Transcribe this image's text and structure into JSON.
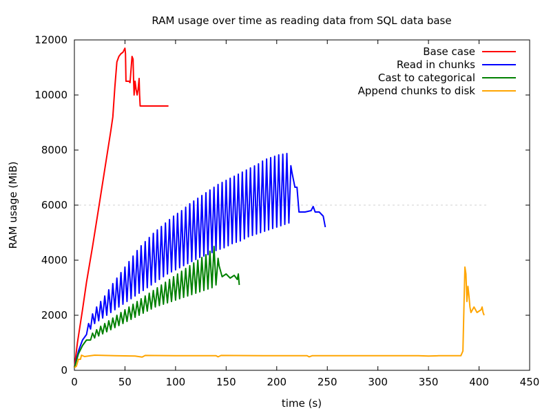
{
  "chart_data": {
    "type": "line",
    "title": "RAM usage over time as reading data from SQL data base",
    "xlabel": "time (s)",
    "ylabel": "RAM usage (MiB)",
    "xlim": [
      0,
      450
    ],
    "ylim": [
      0,
      12000
    ],
    "xticks": [
      0,
      50,
      100,
      150,
      200,
      250,
      300,
      350,
      400,
      450
    ],
    "yticks": [
      0,
      2000,
      4000,
      6000,
      8000,
      10000,
      12000
    ],
    "grid": "dashed horizontal line at 6000",
    "legend_position": "top-right",
    "series": [
      {
        "name": "Base case",
        "color": "#ff0000",
        "points": [
          [
            0,
            100
          ],
          [
            3,
            1000
          ],
          [
            8,
            2200
          ],
          [
            12,
            3200
          ],
          [
            18,
            4500
          ],
          [
            24,
            5900
          ],
          [
            30,
            7300
          ],
          [
            36,
            8700
          ],
          [
            38,
            9200
          ],
          [
            40,
            10300
          ],
          [
            42,
            11200
          ],
          [
            44,
            11400
          ],
          [
            46,
            11500
          ],
          [
            48,
            11550
          ],
          [
            50,
            11700
          ],
          [
            50.5,
            11500
          ],
          [
            51,
            10500
          ],
          [
            54,
            10500
          ],
          [
            55,
            10450
          ],
          [
            57,
            11400
          ],
          [
            58,
            11300
          ],
          [
            58.5,
            10600
          ],
          [
            59,
            10000
          ],
          [
            60,
            10500
          ],
          [
            61,
            10200
          ],
          [
            62,
            10000
          ],
          [
            63,
            10200
          ],
          [
            64,
            10600
          ],
          [
            64.5,
            10000
          ],
          [
            65,
            9600
          ],
          [
            80,
            9600
          ],
          [
            93,
            9600
          ]
        ]
      },
      {
        "name": "Read in chunks",
        "color": "#0000ff",
        "points": [
          [
            0,
            100
          ],
          [
            4,
            700
          ],
          [
            8,
            1100
          ],
          [
            12,
            1500
          ],
          [
            16,
            1900
          ],
          [
            20,
            2200
          ],
          [
            24,
            2400
          ],
          [
            28,
            2600
          ],
          [
            32,
            2800
          ],
          [
            36,
            3050
          ],
          [
            40,
            3250
          ],
          [
            44,
            3450
          ],
          [
            48,
            3650
          ],
          [
            52,
            3850
          ],
          [
            56,
            4050
          ],
          [
            60,
            4250
          ],
          [
            64,
            4450
          ],
          [
            68,
            4600
          ],
          [
            72,
            4750
          ],
          [
            76,
            4900
          ],
          [
            80,
            5050
          ],
          [
            84,
            5150
          ],
          [
            88,
            5300
          ],
          [
            92,
            5400
          ],
          [
            96,
            5550
          ],
          [
            100,
            5650
          ],
          [
            104,
            5750
          ],
          [
            108,
            5850
          ],
          [
            112,
            6000
          ],
          [
            116,
            6100
          ],
          [
            120,
            6200
          ],
          [
            124,
            6300
          ],
          [
            128,
            6400
          ],
          [
            132,
            6500
          ],
          [
            136,
            6600
          ],
          [
            140,
            6700
          ],
          [
            144,
            6800
          ],
          [
            148,
            6850
          ],
          [
            152,
            6950
          ],
          [
            156,
            7000
          ],
          [
            160,
            7100
          ],
          [
            164,
            7150
          ],
          [
            168,
            7250
          ],
          [
            172,
            7300
          ],
          [
            176,
            7400
          ],
          [
            180,
            7450
          ],
          [
            184,
            7550
          ],
          [
            188,
            7650
          ],
          [
            192,
            7700
          ],
          [
            196,
            7750
          ],
          [
            200,
            7800
          ],
          [
            204,
            7850
          ],
          [
            208,
            7850
          ],
          [
            212,
            7900
          ],
          [
            215,
            7200
          ],
          [
            218,
            6650
          ],
          [
            220,
            6650
          ],
          [
            222,
            5750
          ],
          [
            228,
            5750
          ],
          [
            234,
            5800
          ],
          [
            236,
            5950
          ],
          [
            238,
            5750
          ],
          [
            242,
            5750
          ],
          [
            246,
            5600
          ],
          [
            248,
            5200
          ]
        ],
        "oscillation_lows": [
          [
            12,
            1300
          ],
          [
            20,
            1700
          ],
          [
            28,
            1900
          ],
          [
            36,
            2100
          ],
          [
            44,
            2300
          ],
          [
            52,
            2500
          ],
          [
            60,
            2700
          ],
          [
            68,
            2900
          ],
          [
            76,
            3100
          ],
          [
            84,
            3300
          ],
          [
            92,
            3500
          ],
          [
            100,
            3650
          ],
          [
            108,
            3800
          ],
          [
            116,
            3950
          ],
          [
            124,
            4100
          ],
          [
            132,
            4200
          ],
          [
            140,
            4350
          ],
          [
            148,
            4450
          ],
          [
            156,
            4600
          ],
          [
            164,
            4700
          ],
          [
            172,
            4850
          ],
          [
            180,
            4950
          ],
          [
            188,
            5050
          ],
          [
            196,
            5150
          ],
          [
            204,
            5250
          ],
          [
            212,
            5350
          ]
        ]
      },
      {
        "name": "Cast to categorical",
        "color": "#008000",
        "points": [
          [
            0,
            100
          ],
          [
            4,
            600
          ],
          [
            8,
            900
          ],
          [
            12,
            1100
          ],
          [
            16,
            1300
          ],
          [
            20,
            1400
          ],
          [
            24,
            1550
          ],
          [
            28,
            1650
          ],
          [
            32,
            1750
          ],
          [
            36,
            1850
          ],
          [
            40,
            1950
          ],
          [
            44,
            2050
          ],
          [
            48,
            2150
          ],
          [
            52,
            2250
          ],
          [
            56,
            2350
          ],
          [
            60,
            2450
          ],
          [
            64,
            2550
          ],
          [
            68,
            2650
          ],
          [
            72,
            2750
          ],
          [
            76,
            2850
          ],
          [
            80,
            2950
          ],
          [
            84,
            3050
          ],
          [
            88,
            3150
          ],
          [
            92,
            3250
          ],
          [
            96,
            3350
          ],
          [
            100,
            3450
          ],
          [
            104,
            3550
          ],
          [
            108,
            3650
          ],
          [
            112,
            3750
          ],
          [
            116,
            3850
          ],
          [
            120,
            3950
          ],
          [
            124,
            4050
          ],
          [
            128,
            4150
          ],
          [
            132,
            4250
          ],
          [
            136,
            4400
          ],
          [
            140,
            4600
          ],
          [
            143,
            3800
          ],
          [
            146,
            3400
          ],
          [
            150,
            3500
          ],
          [
            154,
            3350
          ],
          [
            158,
            3450
          ],
          [
            161,
            3300
          ],
          [
            162,
            3500
          ],
          [
            163,
            3100
          ]
        ],
        "oscillation_lows": [
          [
            16,
            1100
          ],
          [
            24,
            1250
          ],
          [
            32,
            1400
          ],
          [
            40,
            1550
          ],
          [
            48,
            1700
          ],
          [
            56,
            1850
          ],
          [
            64,
            2000
          ],
          [
            72,
            2150
          ],
          [
            80,
            2300
          ],
          [
            88,
            2400
          ],
          [
            96,
            2500
          ],
          [
            104,
            2600
          ],
          [
            112,
            2700
          ],
          [
            120,
            2800
          ],
          [
            128,
            2900
          ],
          [
            136,
            3000
          ],
          [
            140,
            3100
          ]
        ]
      },
      {
        "name": "Append chunks to disk",
        "color": "#ffa500",
        "points": [
          [
            0,
            100
          ],
          [
            2,
            150
          ],
          [
            4,
            400
          ],
          [
            6,
            400
          ],
          [
            7,
            550
          ],
          [
            10,
            500
          ],
          [
            20,
            550
          ],
          [
            40,
            530
          ],
          [
            60,
            520
          ],
          [
            67,
            480
          ],
          [
            70,
            540
          ],
          [
            100,
            530
          ],
          [
            140,
            530
          ],
          [
            142,
            490
          ],
          [
            145,
            540
          ],
          [
            200,
            530
          ],
          [
            230,
            530
          ],
          [
            232,
            490
          ],
          [
            235,
            530
          ],
          [
            300,
            530
          ],
          [
            340,
            530
          ],
          [
            350,
            520
          ],
          [
            360,
            530
          ],
          [
            382,
            530
          ],
          [
            384,
            700
          ],
          [
            386,
            3750
          ],
          [
            387,
            3500
          ],
          [
            388,
            2500
          ],
          [
            389,
            3050
          ],
          [
            390,
            2700
          ],
          [
            391,
            2300
          ],
          [
            392,
            2100
          ],
          [
            395,
            2300
          ],
          [
            398,
            2100
          ],
          [
            402,
            2200
          ],
          [
            403,
            2300
          ],
          [
            404,
            2100
          ],
          [
            405,
            2000
          ]
        ]
      }
    ]
  }
}
